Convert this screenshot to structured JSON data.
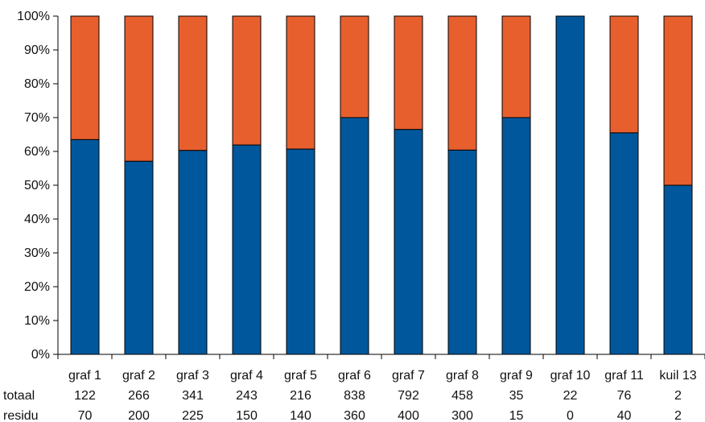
{
  "chart_data": {
    "type": "bar",
    "stacked": true,
    "normalized_percent": true,
    "categories": [
      "graf 1",
      "graf 2",
      "graf 3",
      "graf 4",
      "graf 5",
      "graf 6",
      "graf 7",
      "graf 8",
      "graf 9",
      "graf 10",
      "graf 11",
      "kuil 13"
    ],
    "series": [
      {
        "name": "residu",
        "color": "#01579b",
        "values": [
          63.5,
          57.1,
          60.3,
          61.9,
          60.7,
          70.0,
          66.5,
          60.4,
          70.0,
          100.0,
          65.5,
          50.0
        ]
      },
      {
        "name": "",
        "color": "#e85f2e",
        "values": [
          36.5,
          42.9,
          39.7,
          38.1,
          39.3,
          30.0,
          33.5,
          39.6,
          30.0,
          0.0,
          34.5,
          50.0
        ]
      }
    ],
    "ylim": [
      0,
      100
    ],
    "yticks": [
      "0%",
      "10%",
      "20%",
      "30%",
      "40%",
      "50%",
      "60%",
      "70%",
      "80%",
      "90%",
      "100%"
    ],
    "grid": false,
    "table_rows": [
      {
        "label": "totaal",
        "values": [
          "122",
          "266",
          "341",
          "243",
          "216",
          "838",
          "792",
          "458",
          "35",
          "22",
          "76",
          "2"
        ]
      },
      {
        "label": "residu",
        "values": [
          "70",
          "200",
          "225",
          "150",
          "140",
          "360",
          "400",
          "300",
          "15",
          "0",
          "40",
          "2"
        ]
      }
    ]
  }
}
